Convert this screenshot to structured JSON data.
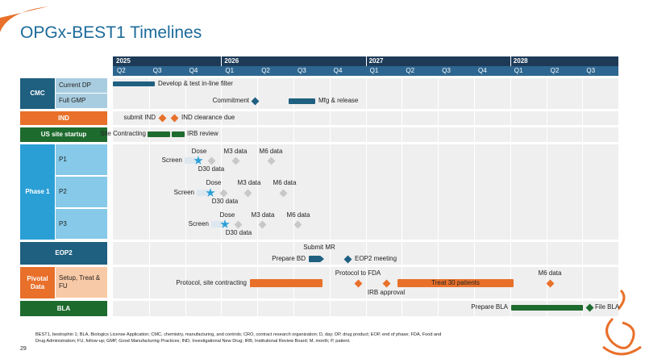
{
  "title": "OPGx-BEST1 Timelines",
  "timeline": {
    "years": [
      "2025",
      "2026",
      "2027",
      "2028"
    ],
    "quarters": [
      "Q2",
      "Q3",
      "Q4",
      "Q1",
      "Q2",
      "Q3",
      "Q4",
      "Q1",
      "Q2",
      "Q3",
      "Q4",
      "Q1",
      "Q2",
      "Q3"
    ]
  },
  "rows": [
    {
      "label": "CMC",
      "sub": [
        "Current DP",
        "Full GMP"
      ]
    },
    {
      "label": "IND"
    },
    {
      "label": "US site startup"
    },
    {
      "label": "Phase 1",
      "sub": [
        "P1",
        "P2",
        "P3"
      ]
    },
    {
      "label": "EOP2"
    },
    {
      "label": "Pivotal Data",
      "sub": [
        "Setup, Treat & FU"
      ]
    },
    {
      "label": "BLA"
    }
  ],
  "annotations": [
    "Develop & test in-line filter",
    "Commitment",
    "Mfg & release",
    "submit IND",
    "IND clearance due",
    "Site Contracting",
    "IRB review",
    "Screen",
    "Dose",
    "D30 data",
    "M3 data",
    "M6 data",
    "Screen",
    "Dose",
    "D30 data",
    "M3 data",
    "M6 data",
    "Screen",
    "Dose",
    "D30 data",
    "M3 data",
    "M6 data",
    "Submit MR",
    "Prepare BD",
    "EOP2 meeting",
    "Protocol, site contracting",
    "Protocol to FDA",
    "IRB approval",
    "Treat 30 patients",
    "M6 data",
    "Prepare BLA",
    "File BLA"
  ],
  "footnote": "BEST1, bestrophin 1; BLA, Biologics License Application; CMC, chemistry, manufacturing, and controls; CRO, contract research organization; D, day; DP, drug product; EOP, end of phase; FDA, Food and Drug Administration; FU, follow-up; GMP, Good Manufacturing Practices; IND, Investigational New Drug; IRB, Institutional Review Board; M, month; P, patient.",
  "page_number": "29"
}
